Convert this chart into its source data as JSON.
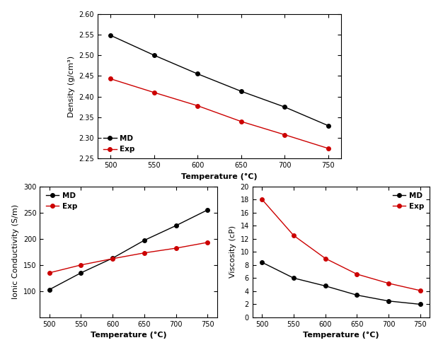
{
  "temp": [
    500,
    550,
    600,
    650,
    700,
    750
  ],
  "density_md": [
    2.548,
    2.5,
    2.455,
    2.413,
    2.375,
    2.33
  ],
  "density_exp": [
    2.443,
    2.41,
    2.378,
    2.34,
    2.308,
    2.275
  ],
  "density_ylabel": "Density (g/cm³)",
  "density_ylim": [
    2.25,
    2.6
  ],
  "density_yticks": [
    2.25,
    2.3,
    2.35,
    2.4,
    2.45,
    2.5,
    2.55,
    2.6
  ],
  "ionic_md": [
    103,
    135,
    163,
    197,
    225,
    255
  ],
  "ionic_exp": [
    135,
    150,
    162,
    173,
    182,
    193
  ],
  "ionic_ylabel": "Ionic Conductivity (S/m)",
  "ionic_ylim": [
    50,
    300
  ],
  "ionic_yticks": [
    100,
    150,
    200,
    250,
    300
  ],
  "viscosity_md": [
    8.4,
    6.0,
    4.8,
    3.4,
    2.5,
    2.0
  ],
  "viscosity_exp": [
    18.0,
    12.5,
    9.0,
    6.6,
    5.2,
    4.1
  ],
  "viscosity_ylabel": "Viscosity (cP)",
  "viscosity_ylim": [
    0,
    20
  ],
  "xlabel": "Temperature (°C)",
  "xticks": [
    500,
    550,
    600,
    650,
    700,
    750
  ],
  "color_md": "#000000",
  "color_exp": "#cc0000",
  "label_md": "MD",
  "label_exp": "Exp",
  "marker": "o",
  "linewidth": 1.0,
  "markersize": 4
}
